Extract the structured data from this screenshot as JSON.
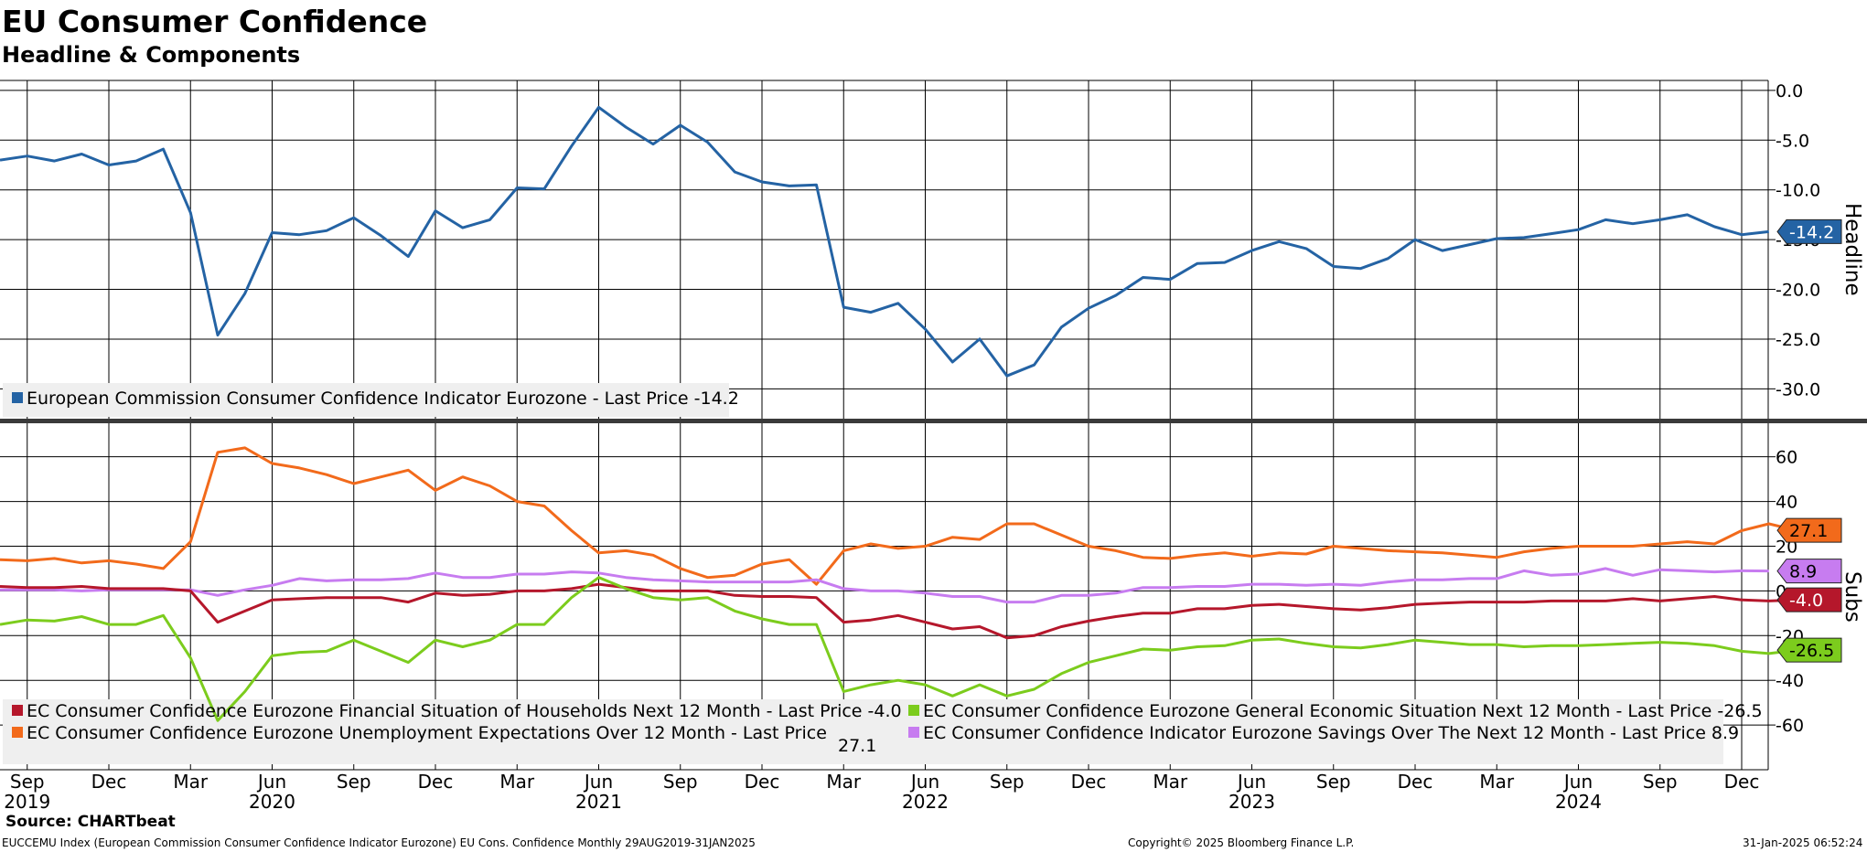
{
  "title": "EU Consumer Confidence",
  "subtitle": "Headline & Components",
  "footer": {
    "source": "Source: CHARTbeat",
    "index_info": "EUCCEMU Index (European Commission Consumer Confidence Indicator Eurozone) EU Cons. Confidence  Monthly 29AUG2019-31JAN2025",
    "copyright": "Copyright© 2025 Bloomberg Finance L.P.",
    "timestamp": "31-Jan-2025 06:52:24"
  },
  "colors": {
    "headline": "#2463a4",
    "financial": "#b5172b",
    "general": "#7ccc1d",
    "unemployment": "#f26a1b",
    "savings": "#c77cf0"
  },
  "chart_data": [
    {
      "type": "line",
      "panel": "top",
      "axis_title": "Headline",
      "ylim": [
        -33,
        1
      ],
      "yticks": [
        0,
        -5,
        -10,
        -15,
        -20,
        -25,
        -30
      ],
      "ytick_labels": [
        "0.0",
        "-5.0",
        "-10.0",
        "-15.0",
        "-20.0",
        "-25.0",
        "-30.0"
      ],
      "grid": true,
      "x": [
        "2019-08",
        "2019-09",
        "2019-10",
        "2019-11",
        "2019-12",
        "2020-01",
        "2020-02",
        "2020-03",
        "2020-04",
        "2020-05",
        "2020-06",
        "2020-07",
        "2020-08",
        "2020-09",
        "2020-10",
        "2020-11",
        "2020-12",
        "2021-01",
        "2021-02",
        "2021-03",
        "2021-04",
        "2021-05",
        "2021-06",
        "2021-07",
        "2021-08",
        "2021-09",
        "2021-10",
        "2021-11",
        "2021-12",
        "2022-01",
        "2022-02",
        "2022-03",
        "2022-04",
        "2022-05",
        "2022-06",
        "2022-07",
        "2022-08",
        "2022-09",
        "2022-10",
        "2022-11",
        "2022-12",
        "2023-01",
        "2023-02",
        "2023-03",
        "2023-04",
        "2023-05",
        "2023-06",
        "2023-07",
        "2023-08",
        "2023-09",
        "2023-10",
        "2023-11",
        "2023-12",
        "2024-01",
        "2024-02",
        "2024-03",
        "2024-04",
        "2024-05",
        "2024-06",
        "2024-07",
        "2024-08",
        "2024-09",
        "2024-10",
        "2024-11",
        "2024-12",
        "2025-01"
      ],
      "series": [
        {
          "name": "European Commission Consumer Confidence Indicator Eurozone - Last Price -14.2",
          "last_value": "-14.2",
          "color": "#2463a4",
          "values": [
            -7.0,
            -6.6,
            -7.1,
            -6.4,
            -7.5,
            -7.1,
            -5.9,
            -12.3,
            -24.6,
            -20.4,
            -14.3,
            -14.5,
            -14.1,
            -12.8,
            -14.6,
            -16.7,
            -12.1,
            -13.8,
            -13.0,
            -9.8,
            -9.9,
            -5.6,
            -1.7,
            -3.7,
            -5.4,
            -3.5,
            -5.2,
            -8.2,
            -9.2,
            -9.6,
            -9.5,
            -21.8,
            -22.3,
            -21.4,
            -24.0,
            -27.3,
            -25.0,
            -28.7,
            -27.6,
            -23.8,
            -21.9,
            -20.6,
            -18.8,
            -19.0,
            -17.4,
            -17.3,
            -16.1,
            -15.2,
            -15.9,
            -17.7,
            -17.9,
            -16.9,
            -15.0,
            -16.1,
            -15.5,
            -14.9,
            -14.8,
            -14.4,
            -14.0,
            -13.0,
            -13.4,
            -13.0,
            -12.5,
            -13.7,
            -14.5,
            -14.2
          ]
        }
      ]
    },
    {
      "type": "line",
      "panel": "bottom",
      "axis_title": "Subs",
      "ylim": [
        -80,
        75
      ],
      "yticks": [
        60,
        40,
        20,
        0,
        -20,
        -40,
        -60
      ],
      "ytick_labels": [
        "60",
        "40",
        "20",
        "0",
        "-20",
        "-40",
        "-60"
      ],
      "grid": true,
      "x_tick_labels": [
        {
          "month": "Sep",
          "year": "2019"
        },
        {
          "month": "Dec",
          "year": ""
        },
        {
          "month": "Mar",
          "year": ""
        },
        {
          "month": "Jun",
          "year": "2020"
        },
        {
          "month": "Sep",
          "year": ""
        },
        {
          "month": "Dec",
          "year": ""
        },
        {
          "month": "Mar",
          "year": ""
        },
        {
          "month": "Jun",
          "year": "2021"
        },
        {
          "month": "Sep",
          "year": ""
        },
        {
          "month": "Dec",
          "year": ""
        },
        {
          "month": "Mar",
          "year": ""
        },
        {
          "month": "Jun",
          "year": "2022"
        },
        {
          "month": "Sep",
          "year": ""
        },
        {
          "month": "Dec",
          "year": ""
        },
        {
          "month": "Mar",
          "year": ""
        },
        {
          "month": "Jun",
          "year": "2023"
        },
        {
          "month": "Sep",
          "year": ""
        },
        {
          "month": "Dec",
          "year": ""
        },
        {
          "month": "Mar",
          "year": ""
        },
        {
          "month": "Jun",
          "year": "2024"
        },
        {
          "month": "Sep",
          "year": ""
        },
        {
          "month": "Dec",
          "year": ""
        }
      ],
      "series": [
        {
          "name": "EC Consumer Confidence Eurozone Unemployment Expectations Over 12 Month - Last Price",
          "last_value": "27.1",
          "color": "#f26a1b",
          "values": [
            14,
            13.5,
            14.5,
            12.5,
            13.5,
            12,
            10,
            22,
            62,
            64,
            57,
            55,
            52,
            48,
            51,
            54,
            45,
            51,
            47,
            40,
            38,
            27,
            17,
            18,
            16,
            10,
            6,
            7,
            12,
            14,
            3,
            18,
            21,
            19,
            20,
            24,
            23,
            30,
            30,
            25,
            20,
            18,
            15,
            14.5,
            16,
            17,
            15.5,
            17,
            16.5,
            20,
            19,
            18,
            17.5,
            17,
            16,
            15,
            17.5,
            19,
            20,
            20,
            20,
            21,
            22,
            21,
            27,
            30,
            27.1
          ]
        },
        {
          "name": "EC Consumer Confidence Indicator Eurozone Savings Over The Next 12 Month - Last Price 8.9",
          "last_value": "8.9",
          "color": "#c77cf0",
          "values": [
            0.5,
            0.5,
            0.5,
            0,
            0.5,
            0.5,
            0.5,
            0.5,
            -2,
            0.5,
            2.5,
            5.5,
            4.5,
            5,
            5,
            5.5,
            8,
            6,
            6,
            7.5,
            7.5,
            8.5,
            8,
            6,
            5,
            4.5,
            4,
            4,
            4,
            4,
            5,
            1,
            0,
            0,
            -1,
            -2.5,
            -2.5,
            -5,
            -5,
            -2,
            -2,
            -1,
            1.5,
            1.5,
            2,
            2,
            3,
            3,
            2.5,
            3,
            2.5,
            4,
            5,
            5,
            5.5,
            5.5,
            9,
            7,
            7.5,
            10,
            7,
            9.5,
            9,
            8.5,
            9,
            8.9
          ]
        },
        {
          "name": "EC Consumer Confidence Eurozone Financial Situation of Households Next 12 Month - Last Price -4.0",
          "last_value": "-4.0",
          "color": "#b5172b",
          "values": [
            2,
            1.5,
            1.5,
            2,
            1,
            1,
            1,
            0,
            -14,
            -9,
            -4,
            -3.5,
            -3,
            -3,
            -3,
            -5,
            -1,
            -2,
            -1.5,
            0,
            0,
            1,
            3,
            1.5,
            0,
            0,
            0,
            -2,
            -2.5,
            -2.5,
            -3,
            -14,
            -13,
            -11,
            -14,
            -17,
            -16,
            -21,
            -20,
            -16,
            -13.5,
            -11.5,
            -10,
            -10,
            -8,
            -8,
            -6.5,
            -6,
            -7,
            -8,
            -8.5,
            -7.5,
            -6,
            -5.5,
            -5,
            -5,
            -5,
            -4.5,
            -4.5,
            -4.5,
            -3.5,
            -4.5,
            -3.5,
            -2.5,
            -4,
            -4.5,
            -4.0
          ]
        },
        {
          "name": "EC Consumer Confidence Eurozone General Economic Situation Next 12 Month - Last Price -26.5",
          "last_value": "-26.5",
          "color": "#7ccc1d",
          "values": [
            -15,
            -13,
            -13.5,
            -11.5,
            -15,
            -15,
            -11,
            -30,
            -58,
            -45,
            -29,
            -27.5,
            -27,
            -22,
            -27,
            -32,
            -22,
            -25,
            -22,
            -15,
            -15,
            -3,
            6,
            1,
            -3,
            -4,
            -3,
            -9,
            -12.5,
            -15,
            -15,
            -45,
            -42,
            -40,
            -42,
            -47,
            -42,
            -47,
            -44,
            -37,
            -32,
            -29,
            -26,
            -26.5,
            -25,
            -24.5,
            -22,
            -21.5,
            -23.5,
            -25,
            -25.5,
            -24,
            -22,
            -23,
            -24,
            -24,
            -25,
            -24.5,
            -24.5,
            -24,
            -23.5,
            -23,
            -23.5,
            -24.5,
            -27,
            -28,
            -26.5
          ]
        }
      ]
    }
  ]
}
